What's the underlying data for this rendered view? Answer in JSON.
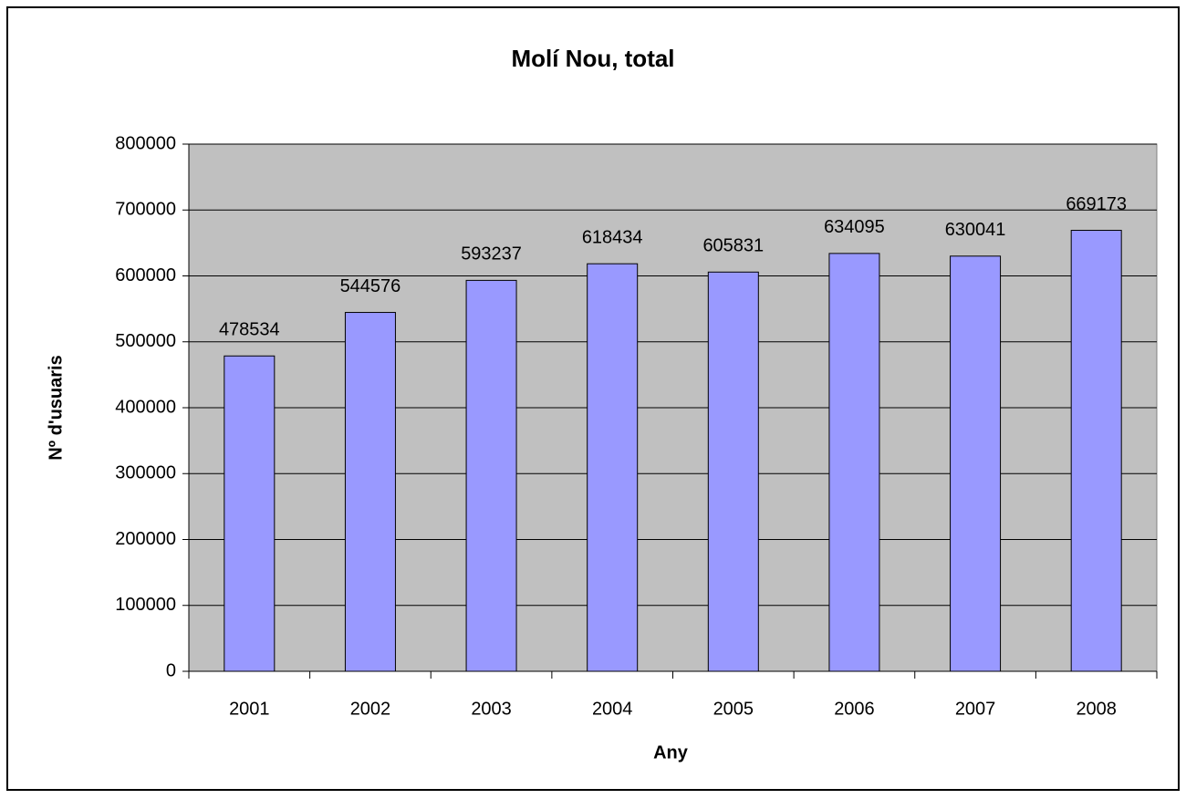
{
  "chart_data": {
    "type": "bar",
    "title": "Molí Nou, total",
    "x_label": "Any",
    "y_label": "Nº d'usuaris",
    "categories": [
      "2001",
      "2002",
      "2003",
      "2004",
      "2005",
      "2006",
      "2007",
      "2008"
    ],
    "values": [
      478534,
      544576,
      593237,
      618434,
      605831,
      634095,
      630041,
      669173
    ],
    "color": "#9999ff",
    "ylim": [
      0,
      800000
    ],
    "yticks": [
      0,
      100000,
      200000,
      300000,
      400000,
      500000,
      600000,
      700000,
      800000
    ],
    "grid": true
  }
}
